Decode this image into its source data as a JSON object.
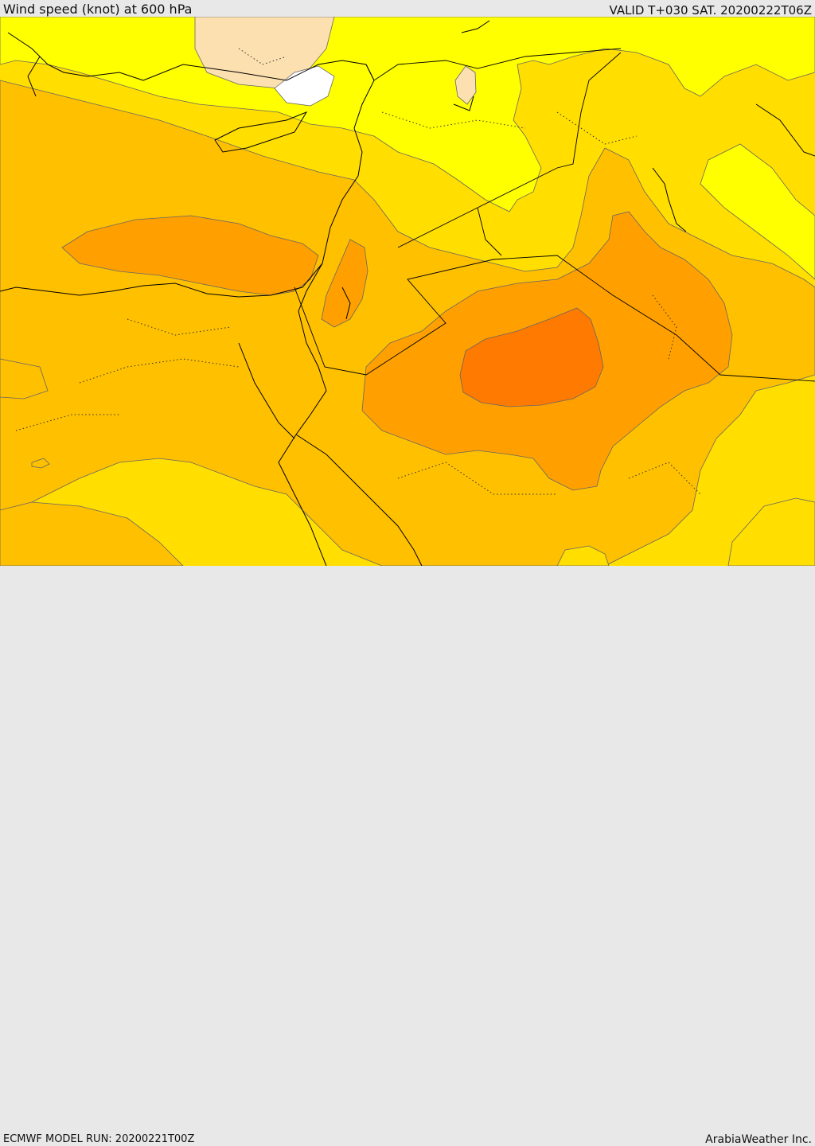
{
  "header": {
    "title": "Wind speed (knot) at 600 hPa",
    "valid": "VALID T+030 SAT. 20200222T06Z"
  },
  "footer": {
    "model_run": "ECMWF MODEL RUN: 20200221T00Z",
    "credit": "ArabiaWeather Inc."
  },
  "map": {
    "variable": "wind speed",
    "level": "600 hPa",
    "units": "knot",
    "colors": {
      "calm": "#ffffff",
      "light": "#fde0b0",
      "yellow": "#ffff00",
      "gold": "#ffde00",
      "amber": "#ffc000",
      "orange": "#ffa000",
      "deep_orange": "#ff7a00",
      "coastline": "#000000",
      "contour": "#666666"
    }
  }
}
